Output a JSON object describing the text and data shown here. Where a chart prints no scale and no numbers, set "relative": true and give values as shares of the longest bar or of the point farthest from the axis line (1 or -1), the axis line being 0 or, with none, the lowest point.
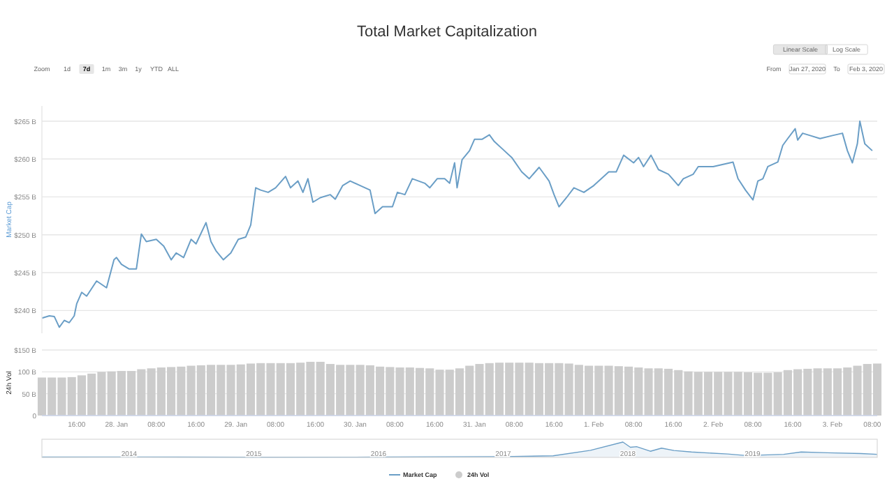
{
  "chart_data": [
    {
      "type": "line",
      "title": "Total Market Capitalization",
      "ylabel": "Market Cap",
      "grid": "y",
      "legend": "bottom",
      "tick_labels": "y",
      "annotations": [
        "Zoom",
        "1d",
        "7d",
        "1m",
        "3m",
        "1y",
        "YTD",
        "ALL",
        "Linear Scale",
        "Log Scale",
        "From",
        "Jan 27, 2020",
        "To",
        "Feb 3, 2020"
      ],
      "xlim": [
        "2020-01-27T09:00",
        "2020-02-03T09:00"
      ],
      "ylim": [
        237,
        267
      ],
      "yticks": [
        {
          "value": 240,
          "label": "$240 B"
        },
        {
          "value": 245,
          "label": "$245 B"
        },
        {
          "value": 250,
          "label": "$250 B"
        },
        {
          "value": 255,
          "label": "$255 B"
        },
        {
          "value": 260,
          "label": "$260 B"
        },
        {
          "value": 265,
          "label": "$265 B"
        }
      ],
      "series": [
        {
          "name": "Market Cap",
          "color": "#6a9ec6",
          "x": [
            "2020-01-27T09:00",
            "2020-01-27T10:30",
            "2020-01-27T11:30",
            "2020-01-27T12:30",
            "2020-01-27T13:30",
            "2020-01-27T14:30",
            "2020-01-27T15:30",
            "2020-01-27T16:00",
            "2020-01-27T17:00",
            "2020-01-27T18:00",
            "2020-01-27T20:00",
            "2020-01-27T22:00",
            "2020-01-27T23:30",
            "2020-01-28T00:00",
            "2020-01-28T01:00",
            "2020-01-28T02:30",
            "2020-01-28T04:00",
            "2020-01-28T05:00",
            "2020-01-28T06:00",
            "2020-01-28T08:00",
            "2020-01-28T09:30",
            "2020-01-28T11:00",
            "2020-01-28T12:00",
            "2020-01-28T13:30",
            "2020-01-28T15:00",
            "2020-01-28T16:00",
            "2020-01-28T18:00",
            "2020-01-28T19:00",
            "2020-01-28T20:00",
            "2020-01-28T21:30",
            "2020-01-28T23:00",
            "2020-01-29T00:30",
            "2020-01-29T02:00",
            "2020-01-29T03:00",
            "2020-01-29T04:00",
            "2020-01-29T05:00",
            "2020-01-29T06:30",
            "2020-01-29T08:00",
            "2020-01-29T10:00",
            "2020-01-29T11:00",
            "2020-01-29T12:30",
            "2020-01-29T13:30",
            "2020-01-29T14:30",
            "2020-01-29T15:30",
            "2020-01-29T17:00",
            "2020-01-29T19:00",
            "2020-01-29T20:00",
            "2020-01-29T21:30",
            "2020-01-29T23:00",
            "2020-01-30T01:00",
            "2020-01-30T03:00",
            "2020-01-30T04:00",
            "2020-01-30T05:30",
            "2020-01-30T07:30",
            "2020-01-30T08:30",
            "2020-01-30T10:00",
            "2020-01-30T11:30",
            "2020-01-30T14:00",
            "2020-01-30T15:00",
            "2020-01-30T16:30",
            "2020-01-30T18:00",
            "2020-01-30T19:00",
            "2020-01-30T20:00",
            "2020-01-30T20:30",
            "2020-01-30T21:30",
            "2020-01-30T23:00",
            "2020-01-31T00:00",
            "2020-01-31T01:30",
            "2020-01-31T03:00",
            "2020-01-31T04:00",
            "2020-01-31T06:00",
            "2020-01-31T07:30",
            "2020-01-31T09:30",
            "2020-01-31T11:00",
            "2020-01-31T13:00",
            "2020-01-31T15:00",
            "2020-01-31T16:00",
            "2020-01-31T17:00",
            "2020-01-31T18:30",
            "2020-01-31T20:00",
            "2020-01-31T22:00",
            "2020-02-01T00:00",
            "2020-02-01T01:00",
            "2020-02-01T03:00",
            "2020-02-01T04:30",
            "2020-02-01T06:00",
            "2020-02-01T08:00",
            "2020-02-01T09:00",
            "2020-02-01T10:00",
            "2020-02-01T11:30",
            "2020-02-01T13:00",
            "2020-02-01T15:00",
            "2020-02-01T17:00",
            "2020-02-01T18:00",
            "2020-02-01T20:00",
            "2020-02-01T21:00",
            "2020-02-02T00:00",
            "2020-02-02T04:00",
            "2020-02-02T05:00",
            "2020-02-02T06:30",
            "2020-02-02T08:00",
            "2020-02-02T09:00",
            "2020-02-02T10:00",
            "2020-02-02T11:00",
            "2020-02-02T13:00",
            "2020-02-02T14:00",
            "2020-02-02T15:00",
            "2020-02-02T16:30",
            "2020-02-02T17:00",
            "2020-02-02T18:00",
            "2020-02-02T19:30",
            "2020-02-02T21:30",
            "2020-02-03T00:00",
            "2020-02-03T02:00",
            "2020-02-03T03:00",
            "2020-02-03T04:00",
            "2020-02-03T05:00",
            "2020-02-03T05:30",
            "2020-02-03T06:30",
            "2020-02-03T08:00"
          ],
          "values": [
            239.0,
            239.3,
            239.2,
            237.8,
            238.7,
            238.4,
            239.3,
            240.9,
            242.4,
            241.9,
            243.9,
            243.0,
            246.7,
            247.0,
            246.1,
            245.5,
            245.5,
            250.1,
            249.1,
            249.4,
            248.5,
            246.7,
            247.6,
            247.0,
            249.4,
            248.8,
            251.6,
            249.1,
            247.9,
            246.7,
            247.6,
            249.4,
            249.7,
            251.3,
            256.2,
            255.9,
            255.6,
            256.2,
            257.7,
            256.2,
            257.1,
            255.6,
            257.4,
            254.3,
            254.9,
            255.3,
            254.7,
            256.5,
            257.1,
            256.5,
            255.9,
            252.8,
            253.7,
            253.7,
            255.6,
            255.3,
            257.4,
            256.8,
            256.2,
            257.4,
            257.4,
            256.8,
            259.5,
            256.2,
            259.9,
            261.1,
            262.6,
            262.6,
            263.2,
            262.3,
            261.1,
            260.2,
            258.3,
            257.4,
            258.9,
            257.1,
            255.3,
            253.7,
            254.9,
            256.2,
            255.6,
            256.5,
            257.1,
            258.3,
            258.3,
            260.5,
            259.5,
            260.2,
            259.0,
            260.5,
            258.6,
            258.0,
            256.5,
            257.4,
            258.0,
            259.0,
            259.0,
            259.6,
            257.4,
            255.9,
            254.6,
            257.1,
            257.4,
            259.0,
            259.6,
            261.8,
            262.7,
            264.0,
            262.5,
            263.4,
            263.1,
            262.7,
            263.1,
            263.4,
            261.1,
            259.5,
            262.0,
            265.0,
            262.0,
            261.1
          ]
        }
      ]
    },
    {
      "type": "bar",
      "ylabel": "24h Vol",
      "grid": "y",
      "legend": "bottom",
      "xlim": [
        "2020-01-27T09:00",
        "2020-02-03T09:00"
      ],
      "ylim": [
        0,
        150
      ],
      "yticks": [
        {
          "value": 0,
          "label": "0"
        },
        {
          "value": 50,
          "label": "50 B"
        },
        {
          "value": 100,
          "label": "100 B"
        },
        {
          "value": 150,
          "label": "$150 B"
        }
      ],
      "xticks": [
        {
          "value": "2020-01-27T16:00",
          "label": "16:00"
        },
        {
          "value": "2020-01-28",
          "label": "28. Jan"
        },
        {
          "value": "2020-01-28T08:00",
          "label": "08:00"
        },
        {
          "value": "2020-01-28T16:00",
          "label": "16:00"
        },
        {
          "value": "2020-01-29",
          "label": "29. Jan"
        },
        {
          "value": "2020-01-29T08:00",
          "label": "08:00"
        },
        {
          "value": "2020-01-29T16:00",
          "label": "16:00"
        },
        {
          "value": "2020-01-30",
          "label": "30. Jan"
        },
        {
          "value": "2020-01-30T08:00",
          "label": "08:00"
        },
        {
          "value": "2020-01-30T16:00",
          "label": "16:00"
        },
        {
          "value": "2020-01-31",
          "label": "31. Jan"
        },
        {
          "value": "2020-01-31T08:00",
          "label": "08:00"
        },
        {
          "value": "2020-01-31T16:00",
          "label": "16:00"
        },
        {
          "value": "2020-02-01",
          "label": "1. Feb"
        },
        {
          "value": "2020-02-01T08:00",
          "label": "08:00"
        },
        {
          "value": "2020-02-01T16:00",
          "label": "16:00"
        },
        {
          "value": "2020-02-02",
          "label": "2. Feb"
        },
        {
          "value": "2020-02-02T08:00",
          "label": "08:00"
        },
        {
          "value": "2020-02-02T16:00",
          "label": "16:00"
        },
        {
          "value": "2020-02-03",
          "label": "3. Feb"
        },
        {
          "value": "2020-02-03T08:00",
          "label": "08:00"
        }
      ],
      "x": [
        "2020-01-27T09:00",
        "2020-01-27T11:00",
        "2020-01-27T13:00",
        "2020-01-27T15:00",
        "2020-01-27T17:00",
        "2020-01-27T19:00",
        "2020-01-27T21:00",
        "2020-01-27T23:00",
        "2020-01-28T01:00",
        "2020-01-28T03:00",
        "2020-01-28T05:00",
        "2020-01-28T07:00",
        "2020-01-28T09:00",
        "2020-01-28T11:00",
        "2020-01-28T13:00",
        "2020-01-28T15:00",
        "2020-01-28T17:00",
        "2020-01-28T19:00",
        "2020-01-28T21:00",
        "2020-01-28T23:00",
        "2020-01-29T01:00",
        "2020-01-29T03:00",
        "2020-01-29T05:00",
        "2020-01-29T07:00",
        "2020-01-29T09:00",
        "2020-01-29T11:00",
        "2020-01-29T13:00",
        "2020-01-29T15:00",
        "2020-01-29T17:00",
        "2020-01-29T19:00",
        "2020-01-29T21:00",
        "2020-01-29T23:00",
        "2020-01-30T01:00",
        "2020-01-30T03:00",
        "2020-01-30T05:00",
        "2020-01-30T07:00",
        "2020-01-30T09:00",
        "2020-01-30T11:00",
        "2020-01-30T13:00",
        "2020-01-30T15:00",
        "2020-01-30T17:00",
        "2020-01-30T19:00",
        "2020-01-30T21:00",
        "2020-01-30T23:00",
        "2020-01-31T01:00",
        "2020-01-31T03:00",
        "2020-01-31T05:00",
        "2020-01-31T07:00",
        "2020-01-31T09:00",
        "2020-01-31T11:00",
        "2020-01-31T13:00",
        "2020-01-31T15:00",
        "2020-01-31T17:00",
        "2020-01-31T19:00",
        "2020-01-31T21:00",
        "2020-01-31T23:00",
        "2020-02-01T01:00",
        "2020-02-01T03:00",
        "2020-02-01T05:00",
        "2020-02-01T07:00",
        "2020-02-01T09:00",
        "2020-02-01T11:00",
        "2020-02-01T13:00",
        "2020-02-01T15:00",
        "2020-02-01T17:00",
        "2020-02-01T19:00",
        "2020-02-01T21:00",
        "2020-02-01T23:00",
        "2020-02-02T01:00",
        "2020-02-02T03:00",
        "2020-02-02T05:00",
        "2020-02-02T07:00",
        "2020-02-02T09:00",
        "2020-02-02T11:00",
        "2020-02-02T13:00",
        "2020-02-02T15:00",
        "2020-02-02T17:00",
        "2020-02-02T19:00",
        "2020-02-02T21:00",
        "2020-02-02T23:00",
        "2020-02-03T01:00",
        "2020-02-03T03:00",
        "2020-02-03T05:00",
        "2020-02-03T07:00",
        "2020-02-03T09:00"
      ],
      "series": [
        {
          "name": "24h Vol",
          "color": "#cccccc",
          "values": [
            87,
            87,
            87,
            88,
            92,
            96,
            100,
            101,
            102,
            102,
            106,
            108,
            110,
            111,
            112,
            114,
            115,
            116,
            116,
            116,
            117,
            119,
            120,
            120,
            120,
            120,
            121,
            123,
            123,
            118,
            116,
            116,
            116,
            115,
            112,
            111,
            110,
            110,
            109,
            108,
            105,
            105,
            108,
            114,
            118,
            120,
            121,
            121,
            121,
            121,
            120,
            120,
            120,
            119,
            116,
            114,
            114,
            114,
            113,
            112,
            110,
            108,
            108,
            107,
            104,
            101,
            100,
            100,
            100,
            100,
            100,
            99,
            98,
            98,
            99,
            104,
            106,
            107,
            108,
            108,
            108,
            110,
            114,
            118,
            119
          ]
        }
      ]
    },
    {
      "type": "area",
      "relative": true,
      "tick_labels": "x",
      "xlim": [
        2013.3,
        2020
      ],
      "xticks": [
        2014,
        2015,
        2016,
        2017,
        2018,
        2019
      ],
      "x": [
        2013.3,
        2014,
        2015,
        2016,
        2017,
        2017.4,
        2017.7,
        2017.96,
        2018.02,
        2018.07,
        2018.18,
        2018.27,
        2018.37,
        2018.51,
        2018.8,
        2018.95,
        2019.25,
        2019.39,
        2019.6,
        2019.87,
        2020
      ],
      "series": [
        {
          "color": "#6a9ec6",
          "values": [
            0.02,
            0.03,
            0.01,
            0.02,
            0.05,
            0.1,
            0.46,
            1,
            0.66,
            0.7,
            0.4,
            0.6,
            0.45,
            0.35,
            0.22,
            0.12,
            0.2,
            0.35,
            0.3,
            0.25,
            0.2
          ]
        }
      ]
    }
  ]
}
